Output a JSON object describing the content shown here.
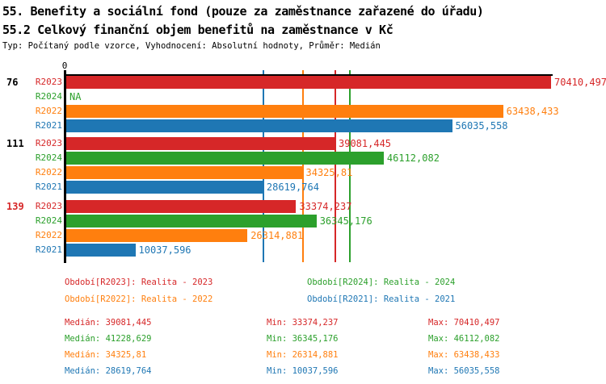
{
  "header": {
    "title": "55. Benefity a sociální fond (pouze za zaměstnance zařazené do úřadu)",
    "subtitle": "55.2 Celkový finanční objem benefitů na zaměstnance v Kč",
    "meta": "Typ: Počítaný podle vzorce, Vyhodnocení: Absolutní hodnoty, Průměr: Medián"
  },
  "colors": {
    "R2023": "#d62728",
    "R2024": "#2ca02c",
    "R2022": "#ff7f0e",
    "R2021": "#1f77b4",
    "black": "#000000"
  },
  "chart_data": {
    "type": "bar",
    "orientation": "horizontal",
    "axis_zero_label": "0",
    "xlim": [
      0,
      70410.497
    ],
    "grid": false,
    "groups": [
      {
        "label": "76",
        "label_color": "#000000",
        "bars": [
          {
            "series": "R2023",
            "value": 70410.497,
            "display": "70410,497"
          },
          {
            "series": "R2024",
            "value": null,
            "display": "NA"
          },
          {
            "series": "R2022",
            "value": 63438.433,
            "display": "63438,433"
          },
          {
            "series": "R2021",
            "value": 56035.558,
            "display": "56035,558"
          }
        ]
      },
      {
        "label": "111",
        "label_color": "#000000",
        "bars": [
          {
            "series": "R2023",
            "value": 39081.445,
            "display": "39081,445"
          },
          {
            "series": "R2024",
            "value": 46112.082,
            "display": "46112,082"
          },
          {
            "series": "R2022",
            "value": 34325.81,
            "display": "34325,81"
          },
          {
            "series": "R2021",
            "value": 28619.764,
            "display": "28619,764"
          }
        ]
      },
      {
        "label": "139",
        "label_color": "#d62728",
        "bars": [
          {
            "series": "R2023",
            "value": 33374.237,
            "display": "33374,237"
          },
          {
            "series": "R2024",
            "value": 36345.176,
            "display": "36345,176"
          },
          {
            "series": "R2022",
            "value": 26314.881,
            "display": "26314,881"
          },
          {
            "series": "R2021",
            "value": 10037.596,
            "display": "10037,596"
          }
        ]
      }
    ],
    "median_lines": [
      {
        "series": "R2021",
        "value": 28619.764
      },
      {
        "series": "R2022",
        "value": 34325.81
      },
      {
        "series": "R2023",
        "value": 39081.445
      },
      {
        "series": "R2024",
        "value": 41228.629
      }
    ]
  },
  "legend": [
    {
      "text": "Období[R2023]: Realita - 2023",
      "color": "#d62728",
      "col": 0,
      "row": 0
    },
    {
      "text": "Období[R2024]: Realita - 2024",
      "color": "#2ca02c",
      "col": 1,
      "row": 0
    },
    {
      "text": "Období[R2022]: Realita - 2022",
      "color": "#ff7f0e",
      "col": 0,
      "row": 1
    },
    {
      "text": "Období[R2021]: Realita - 2021",
      "color": "#1f77b4",
      "col": 1,
      "row": 1
    }
  ],
  "stats": [
    {
      "color": "#d62728",
      "median": "Medián: 39081,445",
      "min": "Min: 33374,237",
      "max": "Max: 70410,497"
    },
    {
      "color": "#2ca02c",
      "median": "Medián: 41228,629",
      "min": "Min: 36345,176",
      "max": "Max: 46112,082"
    },
    {
      "color": "#ff7f0e",
      "median": "Medián: 34325,81",
      "min": "Min: 26314,881",
      "max": "Max: 63438,433"
    },
    {
      "color": "#1f77b4",
      "median": "Medián: 28619,764",
      "min": "Min: 10037,596",
      "max": "Max: 56035,558"
    }
  ]
}
